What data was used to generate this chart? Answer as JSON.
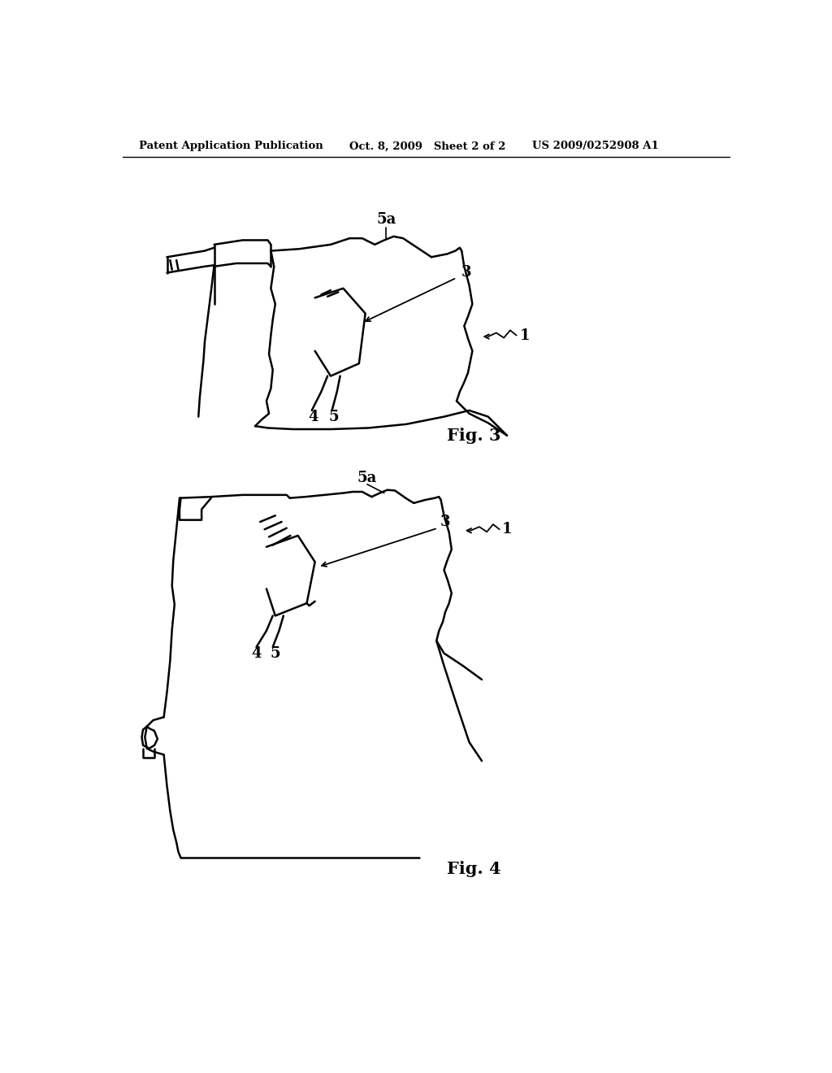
{
  "bg_color": "#ffffff",
  "line_color": "#000000",
  "header_left": "Patent Application Publication",
  "header_mid": "Oct. 8, 2009   Sheet 2 of 2",
  "header_right": "US 2009/0252908 A1"
}
